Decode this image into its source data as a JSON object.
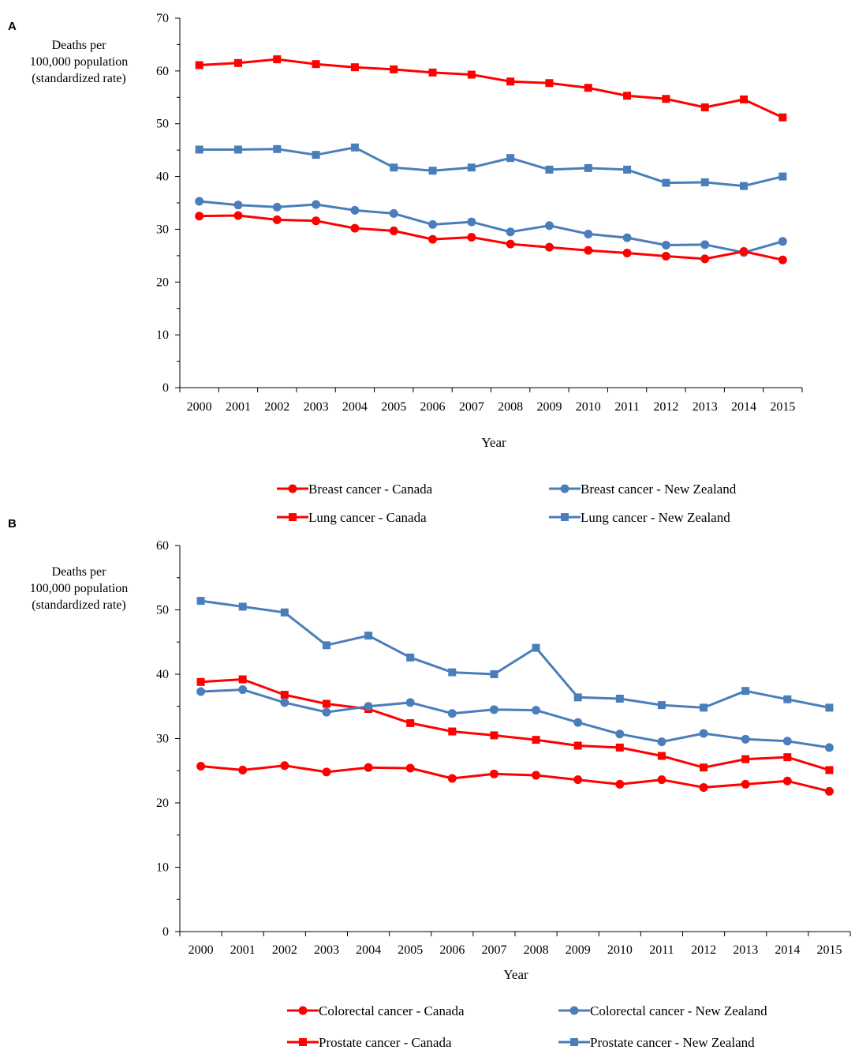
{
  "chart_data": [
    {
      "panel": "A",
      "type": "line",
      "ylabel_lines": [
        "Deaths per",
        "100,000 population",
        "(standardized rate)"
      ],
      "xlabel": "Year",
      "categories": [
        "2000",
        "2001",
        "2002",
        "2003",
        "2004",
        "2005",
        "2006",
        "2007",
        "2008",
        "2009",
        "2010",
        "2011",
        "2012",
        "2013",
        "2014",
        "2015"
      ],
      "ylim": [
        0,
        70
      ],
      "yticks": [
        "0",
        "10",
        "20",
        "30",
        "40",
        "50",
        "60",
        "70"
      ],
      "series": [
        {
          "name": "Lung cancer - Canada",
          "color": "#ff0000",
          "marker": "square",
          "values": [
            61.1,
            61.5,
            62.2,
            61.3,
            60.7,
            60.3,
            59.7,
            59.3,
            58.0,
            57.7,
            56.8,
            55.3,
            54.7,
            53.1,
            54.6,
            51.2
          ]
        },
        {
          "name": "Lung cancer - New Zealand",
          "color": "#4a7ebb",
          "marker": "square",
          "values": [
            45.1,
            45.1,
            45.2,
            44.1,
            45.5,
            41.7,
            41.1,
            41.7,
            43.5,
            41.3,
            41.6,
            41.3,
            38.8,
            38.9,
            38.2,
            40.0
          ]
        },
        {
          "name": "Breast cancer - New Zealand",
          "color": "#4a7ebb",
          "marker": "circle",
          "values": [
            35.3,
            34.6,
            34.2,
            34.7,
            33.6,
            33.0,
            30.9,
            31.4,
            29.5,
            30.7,
            29.1,
            28.4,
            27.0,
            27.1,
            25.6,
            27.7
          ]
        },
        {
          "name": "Breast cancer - Canada",
          "color": "#ff0000",
          "marker": "circle",
          "values": [
            32.5,
            32.6,
            31.8,
            31.6,
            30.2,
            29.7,
            28.1,
            28.5,
            27.2,
            26.6,
            26.0,
            25.5,
            24.9,
            24.4,
            25.8,
            24.2
          ]
        }
      ],
      "legend": [
        "Breast cancer - Canada",
        "Breast cancer - New Zealand",
        "Lung cancer - Canada",
        "Lung cancer - New Zealand"
      ]
    },
    {
      "panel": "B",
      "type": "line",
      "ylabel_lines": [
        "Deaths per",
        "100,000 population",
        "(standardized rate)"
      ],
      "xlabel": "Year",
      "categories": [
        "2000",
        "2001",
        "2002",
        "2003",
        "2004",
        "2005",
        "2006",
        "2007",
        "2008",
        "2009",
        "2010",
        "2011",
        "2012",
        "2013",
        "2014",
        "2015"
      ],
      "ylim": [
        0,
        60
      ],
      "yticks": [
        "0",
        "10",
        "20",
        "30",
        "40",
        "50",
        "60"
      ],
      "series": [
        {
          "name": "Prostate cancer - New Zealand",
          "color": "#4a7ebb",
          "marker": "square",
          "values": [
            51.4,
            50.5,
            49.6,
            44.5,
            46.0,
            42.6,
            40.3,
            40.0,
            44.1,
            36.4,
            36.2,
            35.2,
            34.8,
            37.4,
            36.1,
            34.8
          ]
        },
        {
          "name": "Prostate cancer - Canada",
          "color": "#ff0000",
          "marker": "square",
          "values": [
            38.8,
            39.2,
            36.8,
            35.4,
            34.6,
            32.4,
            31.1,
            30.5,
            29.8,
            28.9,
            28.6,
            27.3,
            25.5,
            26.8,
            27.1,
            25.1
          ]
        },
        {
          "name": "Colorectal cancer - New Zealand",
          "color": "#4a7ebb",
          "marker": "circle",
          "values": [
            37.3,
            37.6,
            35.6,
            34.1,
            35.0,
            35.6,
            33.9,
            34.5,
            34.4,
            32.5,
            30.7,
            29.5,
            30.8,
            29.9,
            29.6,
            28.6
          ]
        },
        {
          "name": "Colorectal cancer - Canada",
          "color": "#ff0000",
          "marker": "circle",
          "values": [
            25.7,
            25.1,
            25.8,
            24.8,
            25.5,
            25.4,
            23.8,
            24.5,
            24.3,
            23.6,
            22.9,
            23.6,
            22.4,
            22.9,
            23.4,
            21.8
          ]
        }
      ],
      "legend": [
        "Colorectal cancer - Canada",
        "Colorectal cancer - New Zealand",
        "Prostate cancer - Canada",
        "Prostate cancer - New Zealand"
      ]
    }
  ]
}
